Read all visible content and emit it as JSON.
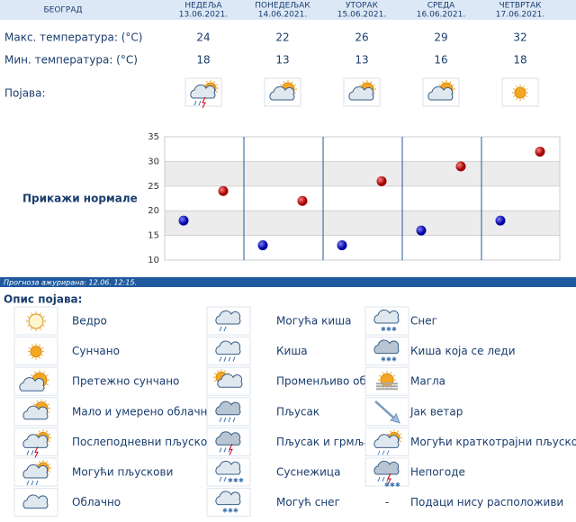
{
  "header": {
    "city": "БЕОГРАД",
    "days": [
      {
        "name": "НЕДЕЉА",
        "date": "13.06.2021."
      },
      {
        "name": "ПОНЕДЕЉАК",
        "date": "14.06.2021."
      },
      {
        "name": "УТОРАК",
        "date": "15.06.2021."
      },
      {
        "name": "СРЕДА",
        "date": "16.06.2021."
      },
      {
        "name": "ЧЕТВРТАК",
        "date": "17.06.2021."
      }
    ]
  },
  "rows": {
    "max_label": "Макс. температура: (°C)",
    "max": [
      24,
      22,
      26,
      29,
      32
    ],
    "min_label": "Мин. температура: (°C)",
    "min": [
      18,
      13,
      13,
      16,
      18
    ],
    "phenomenon_label": "Појава:"
  },
  "chart": {
    "label": "Прикажи нормале",
    "ylim": [
      10,
      35
    ],
    "yticks": [
      10,
      15,
      20,
      25,
      30,
      35
    ]
  },
  "updated": "Прогноза ажурирана:  12.06. 12:15.",
  "legend": {
    "title": "Опис појава:",
    "columns": [
      [
        "Ведро",
        "Сунчано",
        "Претежно сунчано",
        "Мало и умерено облачно",
        "Послеподневни пљускови",
        "Могући пљускови",
        "Облачно"
      ],
      [
        "Могућа киша",
        "Киша",
        "Променљиво облачно",
        "Пљусак",
        "Пљусак и грмљавина",
        "Суснежица",
        "Могућ снег"
      ],
      [
        "Снег",
        "Киша која се леди",
        "Магла",
        "Јак ветар",
        "Могући краткотрајни пљускови",
        "Непогоде",
        "Подаци нису расположиви"
      ]
    ],
    "no_data_symbol": "-"
  }
}
